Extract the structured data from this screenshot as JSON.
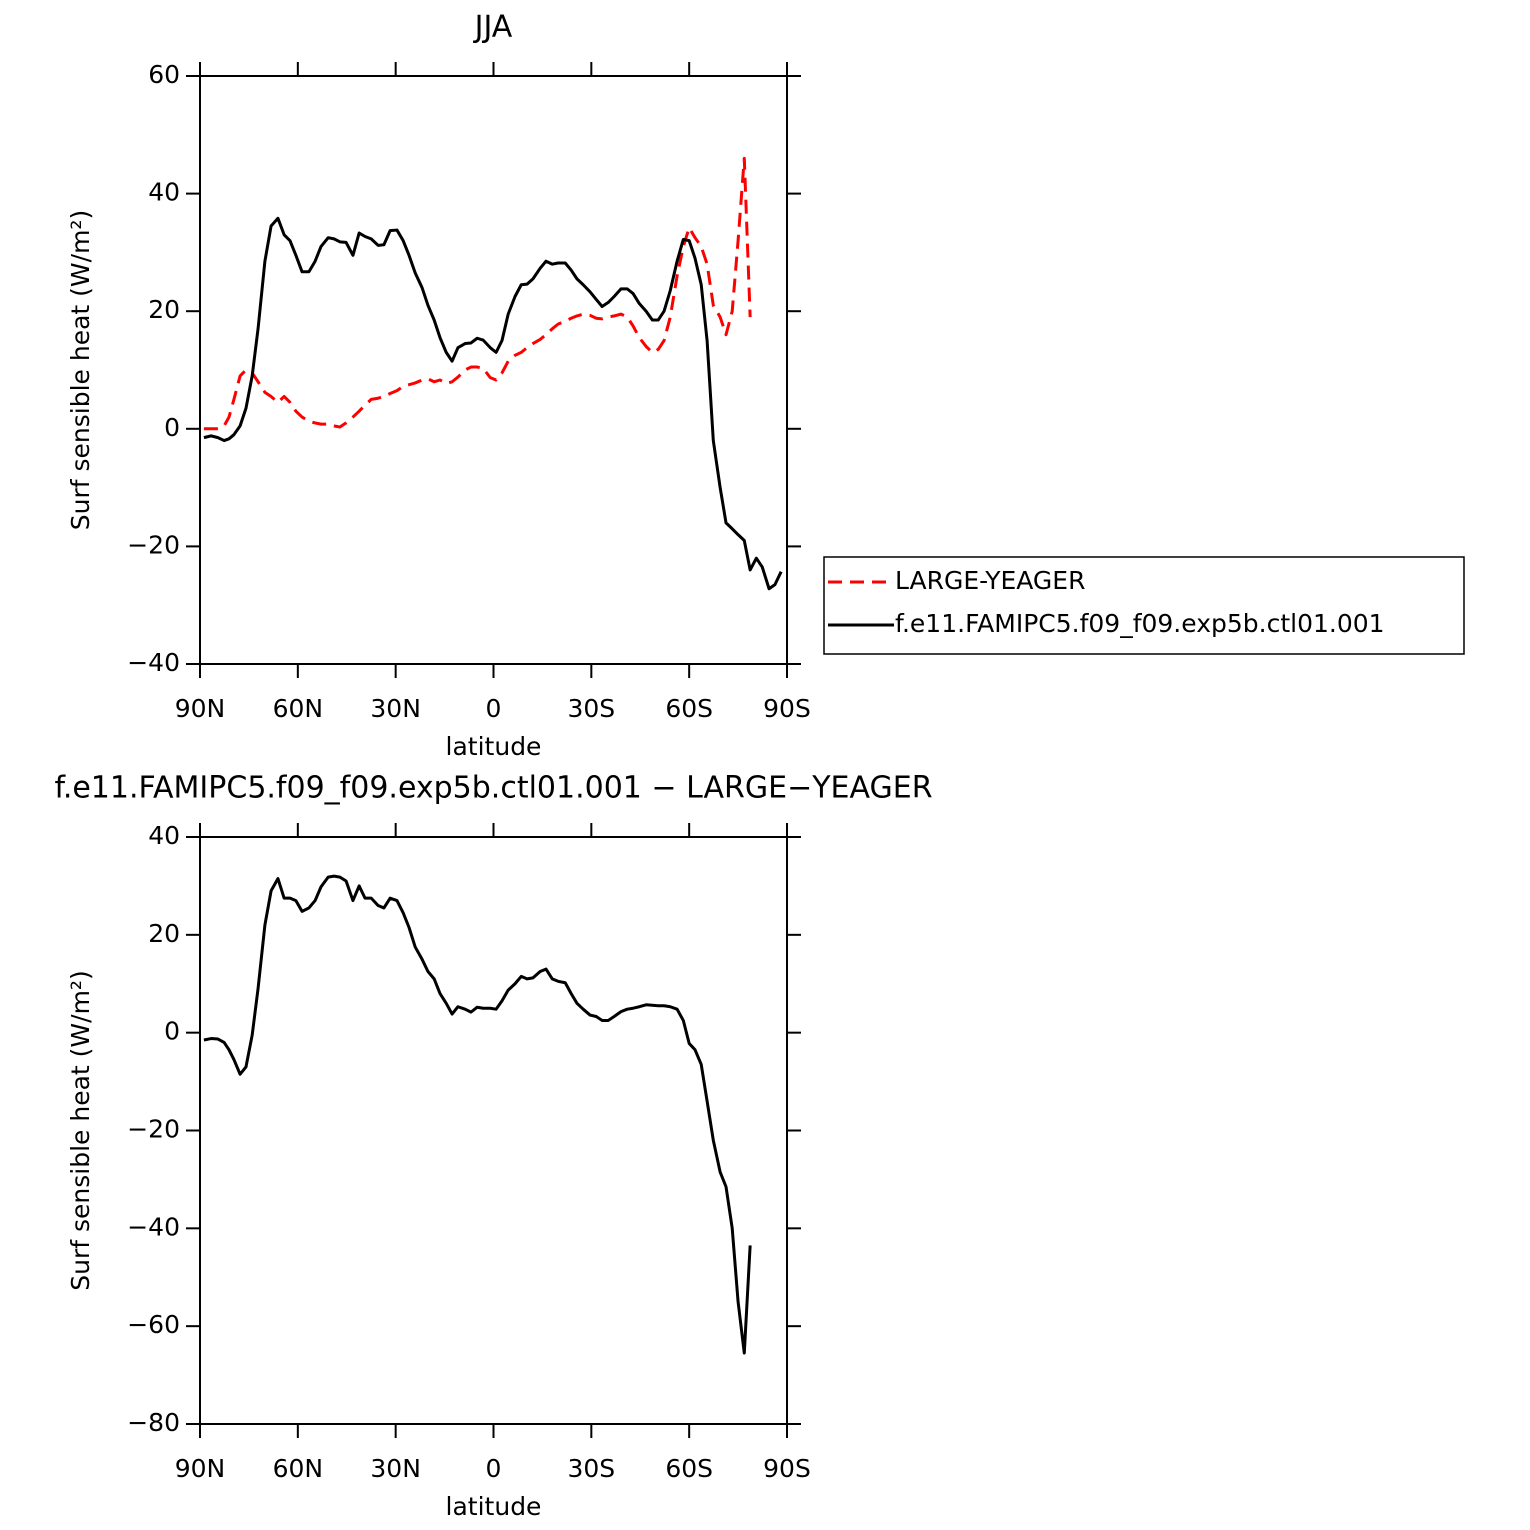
{
  "chart_data": [
    {
      "type": "line",
      "title": "JJA",
      "xlabel": "latitude",
      "ylabel": "Surf sensible heat (W/m²)",
      "x": [
        88.8,
        86.6,
        84.5,
        82.6,
        81.1,
        79.6,
        77.7,
        75.9,
        74,
        72.2,
        70.1,
        68.2,
        66.1,
        64.2,
        62.4,
        60.6,
        58.7,
        56.6,
        54.7,
        52.9,
        50.7,
        48.9,
        47.1,
        45.2,
        43.1,
        41.2,
        39.4,
        37.5,
        35.4,
        33.6,
        31.7,
        29.6,
        27.7,
        25.9,
        24,
        21.9,
        20.1,
        18.2,
        16.4,
        14.5,
        12.7,
        10.9,
        8.7,
        6.9,
        5,
        3.2,
        1,
        -0.8,
        -2.6,
        -4.5,
        -6.6,
        -8.5,
        -10.3,
        -12.1,
        -14.3,
        -16.1,
        -18,
        -19.8,
        -22,
        -23.8,
        -25.6,
        -27.5,
        -29.6,
        -31.5,
        -33.3,
        -35.2,
        -37,
        -39.1,
        -41,
        -42.8,
        -44.7,
        -46.8,
        -48.7,
        -50.5,
        -52.3,
        -54.2,
        -56.3,
        -58.2,
        -60,
        -61.8,
        -63.7,
        -65.5,
        -67.4,
        -69.5,
        -71.3,
        -73.2,
        -75,
        -76.9,
        -78.7,
        -80.6,
        -82.4,
        -84.5,
        -86.3,
        -88.2
      ],
      "series": [
        {
          "name": "LARGE-YEAGER",
          "color": "#ff0000",
          "dash": true,
          "values": [
            0,
            0,
            0,
            0.5,
            2,
            5,
            9,
            10,
            9.5,
            8,
            6.2,
            5.5,
            4.5,
            5.5,
            4.5,
            3,
            2,
            1.3,
            1,
            0.8,
            0.8,
            0.5,
            0.3,
            1,
            2,
            3,
            4,
            5,
            5.2,
            5.5,
            6,
            6.5,
            7.2,
            7.5,
            7.8,
            8.3,
            8.5,
            8,
            8.3,
            7.7,
            8,
            8.8,
            10,
            10.5,
            10.5,
            10.3,
            8.7,
            8.3,
            9.5,
            11.5,
            12.5,
            13,
            13.8,
            14.5,
            15.2,
            16,
            17,
            17.8,
            18.3,
            18.8,
            19.2,
            19.5,
            19.3,
            18.8,
            18.7,
            19,
            19.2,
            19.5,
            19,
            17.5,
            15.5,
            14,
            13,
            13.5,
            15,
            19,
            26,
            31,
            34.2,
            32.5,
            31,
            28,
            21,
            19,
            16,
            20,
            32,
            46,
            19,
            null,
            null,
            null,
            null,
            null
          ]
        },
        {
          "name": "f.e11.FAMIPC5.f09_f09.exp5b.ctl01.001",
          "color": "#000000",
          "dash": false,
          "values": [
            -1.5,
            -1.2,
            -1.5,
            -2,
            -1.7,
            -1,
            0.5,
            3.5,
            9,
            17,
            28.5,
            34.5,
            35.8,
            33,
            32,
            29.5,
            26.7,
            26.7,
            28.5,
            31,
            32.5,
            32.3,
            31.8,
            31.7,
            29.5,
            33.3,
            32.7,
            32.3,
            31.2,
            31.3,
            33.7,
            33.8,
            32,
            29.5,
            26.5,
            24,
            21,
            18.5,
            15.5,
            13,
            11.5,
            13.8,
            14.5,
            14.6,
            15.4,
            15.1,
            13.8,
            13,
            15,
            19.5,
            22.5,
            24.5,
            24.6,
            25.5,
            27.3,
            28.5,
            28,
            28.2,
            28.2,
            27,
            25.5,
            24.5,
            23.3,
            22,
            20.8,
            21.5,
            22.5,
            23.8,
            23.8,
            23,
            21.3,
            20,
            18.5,
            18.5,
            20,
            23.5,
            28.5,
            32.2,
            32,
            29,
            24.5,
            15,
            -2,
            -10,
            -16,
            -17,
            -18,
            -19,
            -24,
            -22,
            -23.5,
            -27.2,
            -26.5,
            -24.3
          ]
        }
      ],
      "xlim": [
        90,
        -90
      ],
      "xticks": [
        {
          "value": 90,
          "label": "90N"
        },
        {
          "value": 60,
          "label": "60N"
        },
        {
          "value": 30,
          "label": "30N"
        },
        0,
        {
          "value": -30,
          "label": "30S"
        },
        {
          "value": -60,
          "label": "60S"
        },
        {
          "value": -90,
          "label": "90S"
        }
      ],
      "ylim": [
        -40,
        60
      ],
      "yticks": [
        {
          "value": -40,
          "label": "−40"
        },
        {
          "value": -20,
          "label": "−20"
        },
        0,
        20,
        40,
        60
      ],
      "legend": "right"
    },
    {
      "type": "line",
      "title": "f.e11.FAMIPC5.f09_f09.exp5b.ctl01.001 − LARGE−YEAGER",
      "xlabel": "latitude",
      "ylabel": "Surf sensible heat (W/m²)",
      "x": [
        88.8,
        86.6,
        84.5,
        82.6,
        81.1,
        79.6,
        77.7,
        75.9,
        74,
        72.2,
        70.1,
        68.2,
        66.1,
        64.2,
        62.4,
        60.6,
        58.7,
        56.6,
        54.7,
        52.9,
        50.7,
        48.9,
        47.1,
        45.2,
        43.1,
        41.2,
        39.4,
        37.5,
        35.4,
        33.6,
        31.7,
        29.6,
        27.7,
        25.9,
        24,
        21.9,
        20.1,
        18.2,
        16.4,
        14.5,
        12.7,
        10.9,
        8.7,
        6.9,
        5,
        3.2,
        1,
        -0.8,
        -2.6,
        -4.5,
        -6.6,
        -8.5,
        -10.3,
        -12.1,
        -14.3,
        -16.1,
        -18,
        -19.8,
        -22,
        -23.8,
        -25.6,
        -27.5,
        -29.6,
        -31.5,
        -33.3,
        -35.2,
        -37,
        -39.1,
        -41,
        -42.8,
        -44.7,
        -46.8,
        -48.7,
        -50.5,
        -52.3,
        -54.2,
        -56.3,
        -58.2,
        -60,
        -61.8,
        -63.7,
        -65.5,
        -67.4,
        -69.5,
        -71.3,
        -73.2,
        -75,
        -76.9,
        -78.7
      ],
      "series": [
        {
          "color": "#000000",
          "dash": false,
          "values": [
            -1.5,
            -1.2,
            -1.3,
            -2,
            -3.5,
            -5.5,
            -8.5,
            -7,
            -0.5,
            9,
            22,
            29,
            31.5,
            27.5,
            27.5,
            27,
            24.8,
            25.5,
            27,
            29.8,
            31.8,
            32,
            31.8,
            31,
            27,
            30,
            27.5,
            27.5,
            26,
            25.5,
            27.5,
            27,
            24.5,
            21.5,
            17.5,
            15,
            12.5,
            11,
            8,
            6,
            3.8,
            5.3,
            4.8,
            4.2,
            5.2,
            5,
            5,
            4.8,
            6.5,
            8.7,
            10,
            11.5,
            11,
            11.2,
            12.5,
            13,
            11,
            10.5,
            10.2,
            8,
            6,
            4.8,
            3.6,
            3.3,
            2.5,
            2.5,
            3.3,
            4.3,
            4.8,
            5,
            5.3,
            5.7,
            5.6,
            5.5,
            5.5,
            5.3,
            4.8,
            2.5,
            -2.2,
            -3.5,
            -6.5,
            -14,
            -22,
            -28.5,
            -31.5,
            -40,
            -55,
            -65.5,
            -43.5
          ]
        }
      ],
      "xlim": [
        90,
        -90
      ],
      "xticks": [
        {
          "value": 90,
          "label": "90N"
        },
        {
          "value": 60,
          "label": "60N"
        },
        {
          "value": 30,
          "label": "30N"
        },
        0,
        {
          "value": -30,
          "label": "30S"
        },
        {
          "value": -60,
          "label": "60S"
        },
        {
          "value": -90,
          "label": "90S"
        }
      ],
      "ylim": [
        -80,
        40
      ],
      "yticks": [
        {
          "value": -80,
          "label": "−80"
        },
        {
          "value": -60,
          "label": "−60"
        },
        {
          "value": -40,
          "label": "−40"
        },
        {
          "value": -20,
          "label": "−20"
        },
        0,
        20,
        40
      ]
    }
  ]
}
